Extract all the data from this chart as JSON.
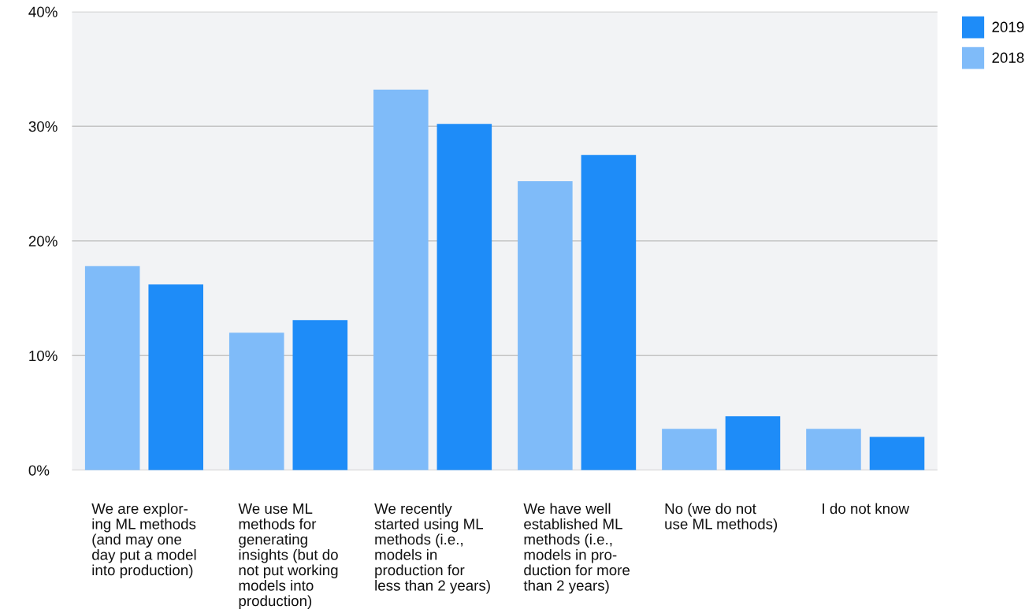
{
  "chart_data": {
    "type": "bar",
    "categories": [
      "We are explor-\ning ML methods\n(and may one\nday put a model\ninto production)",
      "We use ML\nmethods for\ngenerating\ninsights (but do\nnot put working\nmodels into\nproduction)",
      "We recently\nstarted using ML\nmethods (i.e.,\nmodels in\nproduction for\nless than 2 years)",
      "We have well\nestablished ML\nmethods (i.e.,\nmodels in pro-\nduction for more\nthan 2 years)",
      "No (we do not\nuse ML methods)",
      "I do not know"
    ],
    "series": [
      {
        "name": "2018",
        "color": "#7fbbf9",
        "values": [
          17.8,
          12.0,
          33.2,
          25.2,
          3.6,
          3.6
        ]
      },
      {
        "name": "2019",
        "color": "#1e8cf8",
        "values": [
          16.2,
          13.1,
          30.2,
          27.5,
          4.7,
          2.9
        ]
      }
    ],
    "ylim": [
      0,
      40
    ],
    "yticks": [
      {
        "value": 0,
        "label": "0%"
      },
      {
        "value": 10,
        "label": "10%"
      },
      {
        "value": 20,
        "label": "20%"
      },
      {
        "value": 30,
        "label": "30%"
      },
      {
        "value": 40,
        "label": "40%"
      }
    ],
    "grid": "y",
    "legend": "top right"
  }
}
